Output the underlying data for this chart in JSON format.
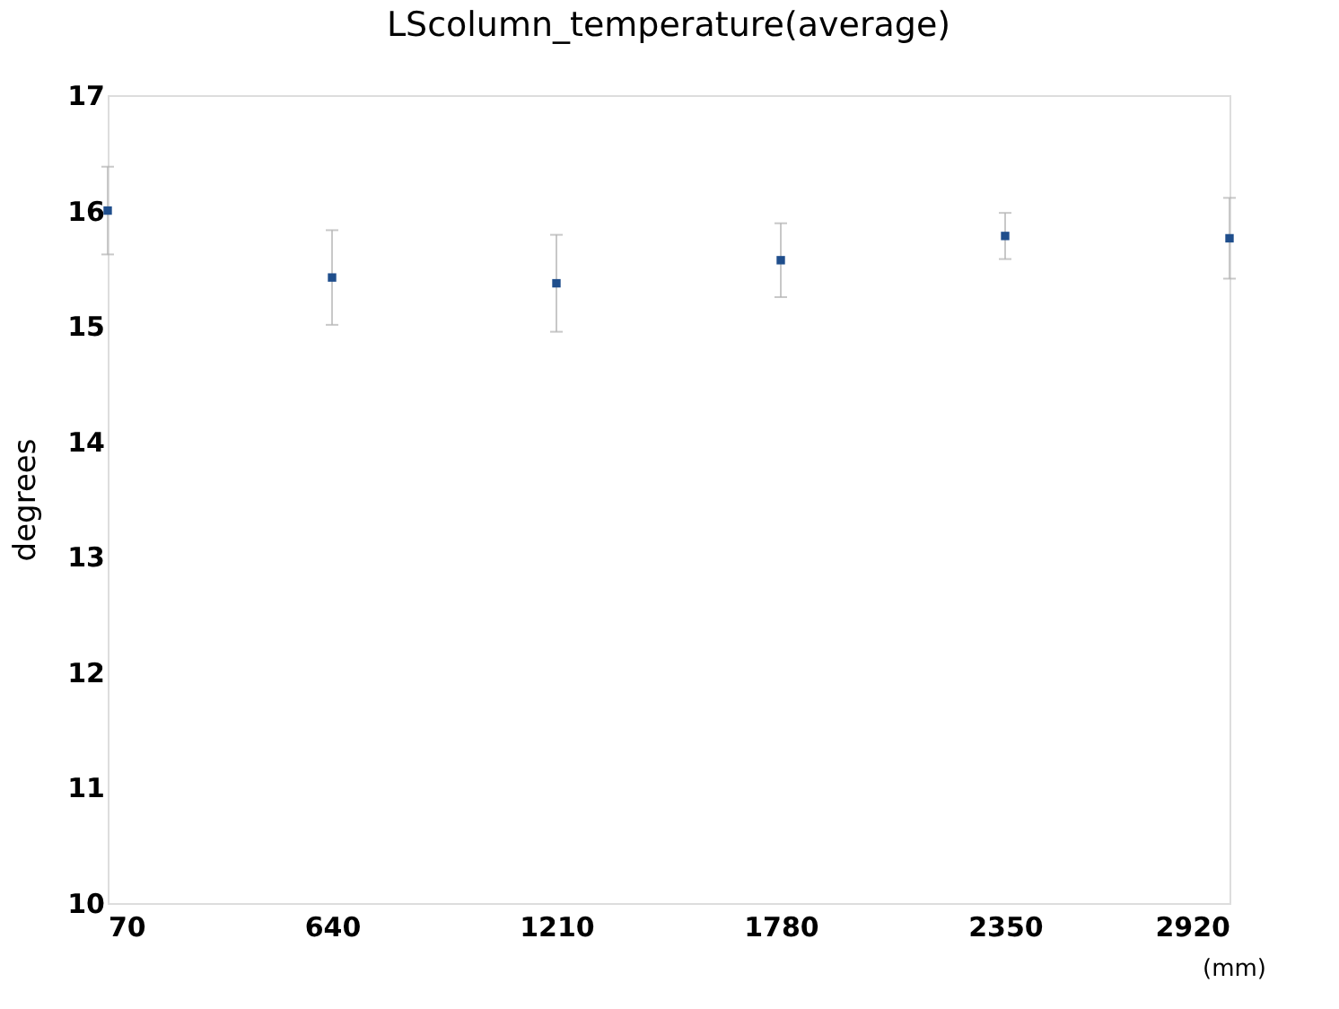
{
  "chart_data": {
    "type": "scatter",
    "title": "LScolumn_temperature(average)",
    "xlabel": "(mm)",
    "ylabel": "degrees",
    "x": [
      70,
      640,
      1210,
      1780,
      2350,
      2920
    ],
    "series": [
      {
        "color": "#1f4e8c",
        "values": [
          16.0,
          15.42,
          15.37,
          15.57,
          15.78,
          15.76
        ],
        "errors": [
          0.38,
          0.41,
          0.42,
          0.32,
          0.2,
          0.35
        ]
      }
    ],
    "xlim": [
      70,
      2920
    ],
    "xticks": [
      70,
      640,
      1210,
      1780,
      2350,
      2920
    ],
    "ylim": [
      10,
      17
    ],
    "yticks": [
      10,
      11,
      12,
      13,
      14,
      15,
      16,
      17
    ],
    "grid": false,
    "marker": "square"
  }
}
